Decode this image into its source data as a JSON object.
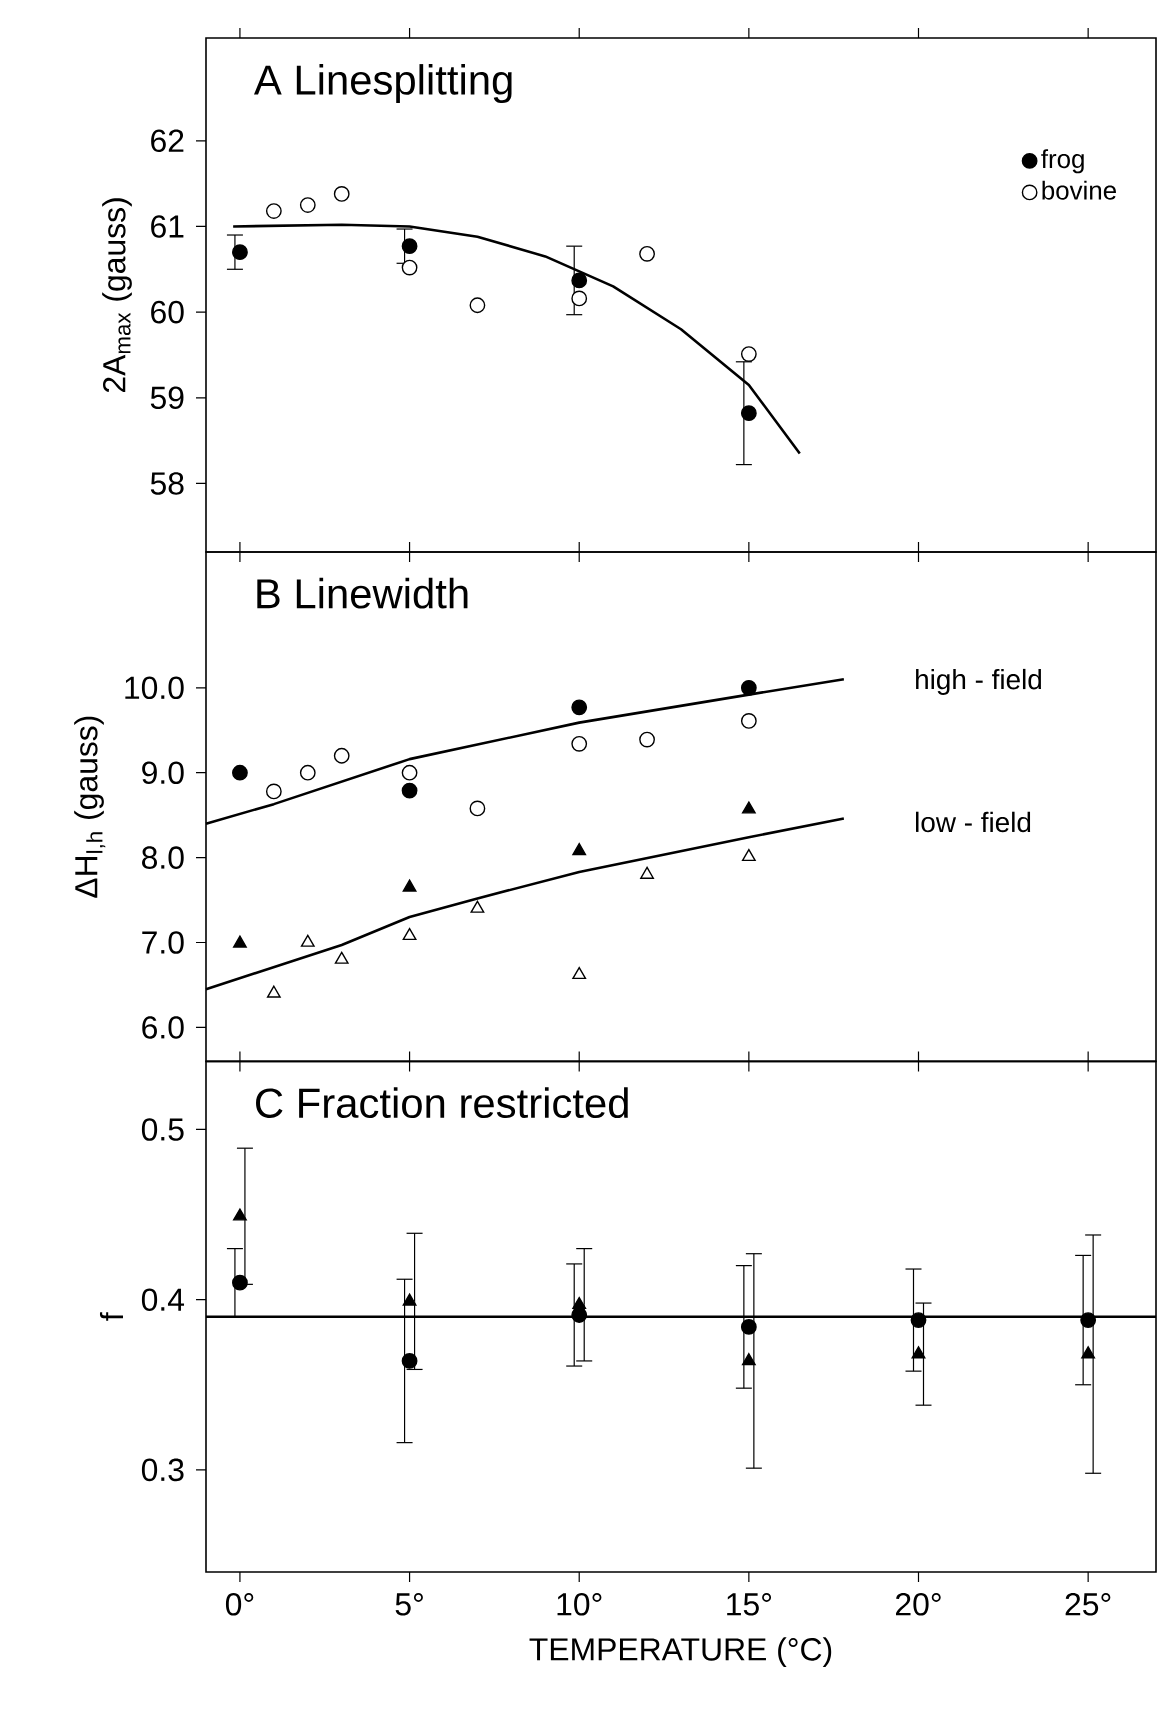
{
  "chart_data": [
    {
      "type": "scatter",
      "title": "A Linesplitting",
      "ylabel": "2A$_{max}$ (gauss)",
      "xlim": [
        -1,
        27
      ],
      "ylim": [
        57.2,
        63.2
      ],
      "tick_labels": "y",
      "legend": "top right",
      "xticks": [
        {
          "value": 0,
          "label": null
        },
        {
          "value": 5,
          "label": null
        },
        {
          "value": 10,
          "label": null
        },
        {
          "value": 15,
          "label": null
        },
        {
          "value": 20,
          "label": null
        },
        {
          "value": 25,
          "label": null
        }
      ],
      "yticks": [
        58,
        59,
        60,
        61,
        62
      ],
      "series": [
        {
          "name": "frog",
          "type": "scatter",
          "color": "#000000",
          "marker": "circle",
          "x": [
            0,
            5,
            10,
            15
          ],
          "values": [
            60.7,
            60.77,
            60.37,
            58.82
          ],
          "errors": [
            0.2,
            0.2,
            0.4,
            0.6
          ]
        },
        {
          "name": "bovine",
          "type": "scatter",
          "color": "#ffffff",
          "marker": "circle",
          "x": [
            1,
            2,
            3,
            5,
            7,
            10,
            12,
            15
          ],
          "values": [
            61.18,
            61.25,
            61.38,
            60.52,
            60.08,
            60.16,
            60.68,
            59.51
          ]
        },
        {
          "type": "line",
          "color": "#000000",
          "marker": "none",
          "x": [
            -0.2,
            3,
            5,
            7,
            9,
            11,
            13,
            15,
            16.5
          ],
          "values": [
            61.0,
            61.02,
            61.0,
            60.88,
            60.65,
            60.3,
            59.8,
            59.15,
            58.35
          ]
        }
      ]
    },
    {
      "type": "scatter",
      "title": "B Linewidth",
      "ylabel": "ΔH$_{l,h}$ (gauss)",
      "xlim": [
        -1,
        27
      ],
      "ylim": [
        5.6,
        11.6
      ],
      "tick_labels": "y",
      "xticks": [
        {
          "value": 0,
          "label": null
        },
        {
          "value": 5,
          "label": null
        },
        {
          "value": 10,
          "label": null
        },
        {
          "value": 15,
          "label": null
        },
        {
          "value": 20,
          "label": null
        },
        {
          "value": 25,
          "label": null
        }
      ],
      "yticks": [
        {
          "value": 6,
          "label": "6.0"
        },
        {
          "value": 7,
          "label": "7.0"
        },
        {
          "value": 8,
          "label": "8.0"
        },
        {
          "value": 9,
          "label": "9.0"
        },
        {
          "value": 10,
          "label": "10.0"
        }
      ],
      "annotations": [
        "high - field",
        "low - field"
      ],
      "series": [
        {
          "type": "scatter",
          "color": "#000000",
          "marker": "circle",
          "x": [
            0,
            5,
            10,
            15
          ],
          "values": [
            9.0,
            8.79,
            9.77,
            10.0
          ]
        },
        {
          "type": "scatter",
          "color": "#ffffff",
          "marker": "circle",
          "x": [
            1,
            2,
            3,
            5,
            7,
            10,
            12,
            15
          ],
          "values": [
            8.78,
            9.0,
            9.2,
            9.0,
            8.58,
            9.34,
            9.39,
            9.61
          ]
        },
        {
          "type": "scatter",
          "color": "#000000",
          "marker": "triangle",
          "x": [
            0,
            5,
            10,
            15
          ],
          "values": [
            6.99,
            7.65,
            8.08,
            8.57
          ]
        },
        {
          "type": "scatter",
          "color": "#ffffff",
          "marker": "triangle",
          "x": [
            1,
            2,
            3,
            5,
            7,
            10,
            12,
            15
          ],
          "values": [
            6.4,
            7.0,
            6.8,
            7.08,
            7.4,
            6.62,
            7.8,
            8.01
          ]
        },
        {
          "type": "line",
          "color": "#000000",
          "marker": "none",
          "x": [
            -1,
            1,
            5,
            10,
            15,
            17.8
          ],
          "values": [
            8.4,
            8.63,
            9.16,
            9.59,
            9.92,
            10.1
          ]
        },
        {
          "type": "line",
          "color": "#000000",
          "marker": "none",
          "x": [
            -1,
            3,
            5,
            7,
            10,
            15,
            17.8
          ],
          "values": [
            6.45,
            6.97,
            7.3,
            7.52,
            7.83,
            8.24,
            8.46
          ]
        }
      ]
    },
    {
      "type": "scatter",
      "title": "C Fraction restricted",
      "ylabel": "f",
      "xlabel": "TEMPERATURE (°C)",
      "xlim": [
        -1,
        27
      ],
      "ylim": [
        0.24,
        0.54
      ],
      "xticks": [
        {
          "value": 0,
          "label": "0°"
        },
        {
          "value": 5,
          "label": "5°"
        },
        {
          "value": 10,
          "label": "10°"
        },
        {
          "value": 15,
          "label": "15°"
        },
        {
          "value": 20,
          "label": "20°"
        },
        {
          "value": 25,
          "label": "25°"
        }
      ],
      "yticks": [
        0.3,
        0.4,
        0.5
      ],
      "ref_lines": [
        {
          "axis": "y",
          "value": 0.39
        }
      ],
      "series": [
        {
          "type": "scatter",
          "color": "#000000",
          "marker": "circle",
          "x": [
            0,
            5,
            10,
            15,
            20,
            25
          ],
          "values": [
            0.41,
            0.364,
            0.391,
            0.384,
            0.388,
            0.388
          ],
          "errors": [
            0.02,
            0.048,
            0.03,
            0.036,
            0.03,
            0.038
          ]
        },
        {
          "type": "scatter",
          "color": "#000000",
          "marker": "triangle",
          "x": [
            0,
            5,
            10,
            15,
            20,
            25
          ],
          "values": [
            0.449,
            0.399,
            0.397,
            0.364,
            0.368,
            0.368
          ],
          "errors": [
            0.04,
            0.04,
            0.033,
            0.063,
            0.03,
            0.07
          ]
        }
      ]
    }
  ]
}
